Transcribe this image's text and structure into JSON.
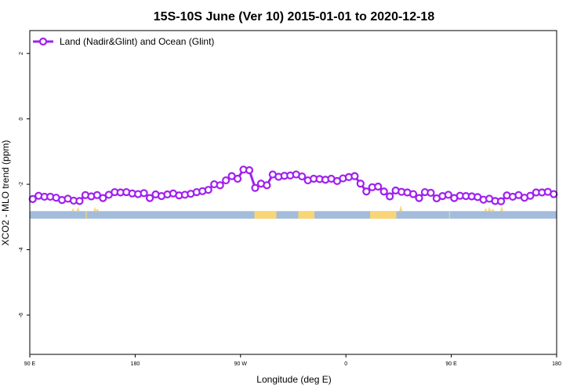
{
  "chart_data": {
    "type": "line",
    "title": "15S-10S June (Ver 10)   2015-01-01 to 2020-12-18",
    "xlabel": "Longitude (deg E)",
    "ylabel": "XCO2 - MLO trend (ppm)",
    "xlim": [
      90,
      450
    ],
    "ylim": [
      -7.2,
      2.7
    ],
    "x_ticks": [
      {
        "value": 90,
        "label": "90 E"
      },
      {
        "value": 162,
        "label": "180"
      },
      {
        "value": 234,
        "label": "90 W"
      },
      {
        "value": 306,
        "label": "0"
      },
      {
        "value": 378,
        "label": "90 E"
      },
      {
        "value": 450,
        "label": "180"
      }
    ],
    "y_ticks": [
      2,
      0,
      -2,
      -4,
      -6
    ],
    "series": [
      {
        "name": "Land (Nadir&Glint) and Ocean (Glint)",
        "color": "#a020f0",
        "x": [
          92,
          96,
          100,
          104,
          108,
          112,
          116,
          120,
          124,
          128,
          132,
          136,
          140,
          144,
          148,
          152,
          156,
          160,
          164,
          168,
          172,
          176,
          180,
          184,
          188,
          192,
          196,
          200,
          204,
          208,
          212,
          216,
          220,
          224,
          228,
          232,
          236,
          240,
          244,
          248,
          252,
          256,
          260,
          264,
          268,
          272,
          276,
          280,
          284,
          288,
          292,
          296,
          300,
          304,
          308,
          312,
          316,
          320,
          324,
          328,
          332,
          336,
          340,
          344,
          348,
          352,
          356,
          360,
          364,
          368,
          372,
          376,
          380,
          384,
          388,
          392,
          396,
          400,
          404,
          408,
          412,
          416,
          420,
          424,
          428,
          432,
          436,
          440,
          444,
          448
        ],
        "y": [
          -2.45,
          -2.35,
          -2.38,
          -2.38,
          -2.41,
          -2.48,
          -2.44,
          -2.5,
          -2.51,
          -2.33,
          -2.37,
          -2.33,
          -2.42,
          -2.32,
          -2.24,
          -2.25,
          -2.24,
          -2.28,
          -2.3,
          -2.27,
          -2.42,
          -2.31,
          -2.36,
          -2.31,
          -2.28,
          -2.34,
          -2.32,
          -2.29,
          -2.24,
          -2.21,
          -2.17,
          -2.0,
          -2.03,
          -1.88,
          -1.75,
          -1.83,
          -1.55,
          -1.57,
          -2.11,
          -1.98,
          -2.03,
          -1.7,
          -1.77,
          -1.74,
          -1.73,
          -1.7,
          -1.76,
          -1.88,
          -1.83,
          -1.84,
          -1.86,
          -1.83,
          -1.9,
          -1.82,
          -1.78,
          -1.75,
          -1.98,
          -2.22,
          -2.09,
          -2.07,
          -2.22,
          -2.37,
          -2.19,
          -2.23,
          -2.25,
          -2.3,
          -2.42,
          -2.24,
          -2.26,
          -2.43,
          -2.36,
          -2.32,
          -2.42,
          -2.35,
          -2.36,
          -2.37,
          -2.39,
          -2.47,
          -2.44,
          -2.51,
          -2.52,
          -2.34,
          -2.38,
          -2.33,
          -2.41,
          -2.35,
          -2.25,
          -2.25,
          -2.23,
          -2.3
        ]
      }
    ],
    "grid": false,
    "legend": "top-left",
    "land_ocean_bar": {
      "ocean_color": "#a3bcdc",
      "land_color": "#f9d675",
      "y_range": [
        -3.05,
        -2.82
      ],
      "land_segments": [
        [
          243.5,
          258.5
        ],
        [
          273.5,
          284.5
        ],
        [
          322.5,
          340.5
        ],
        [
          128.2,
          128.9
        ],
        [
          376.5,
          377.1
        ],
        [
          461.0,
          461.8
        ]
      ],
      "land_ticks": [
        {
          "x": 119.5,
          "h": 0.1
        },
        {
          "x": 123.0,
          "h": 0.14
        },
        {
          "x": 134.5,
          "h": 0.12
        },
        {
          "x": 136.2,
          "h": 0.08
        },
        {
          "x": 343.5,
          "h": 0.18
        },
        {
          "x": 401.5,
          "h": 0.1
        },
        {
          "x": 404.0,
          "h": 0.14
        },
        {
          "x": 406.3,
          "h": 0.08
        },
        {
          "x": 412.5,
          "h": 0.16
        }
      ]
    }
  }
}
